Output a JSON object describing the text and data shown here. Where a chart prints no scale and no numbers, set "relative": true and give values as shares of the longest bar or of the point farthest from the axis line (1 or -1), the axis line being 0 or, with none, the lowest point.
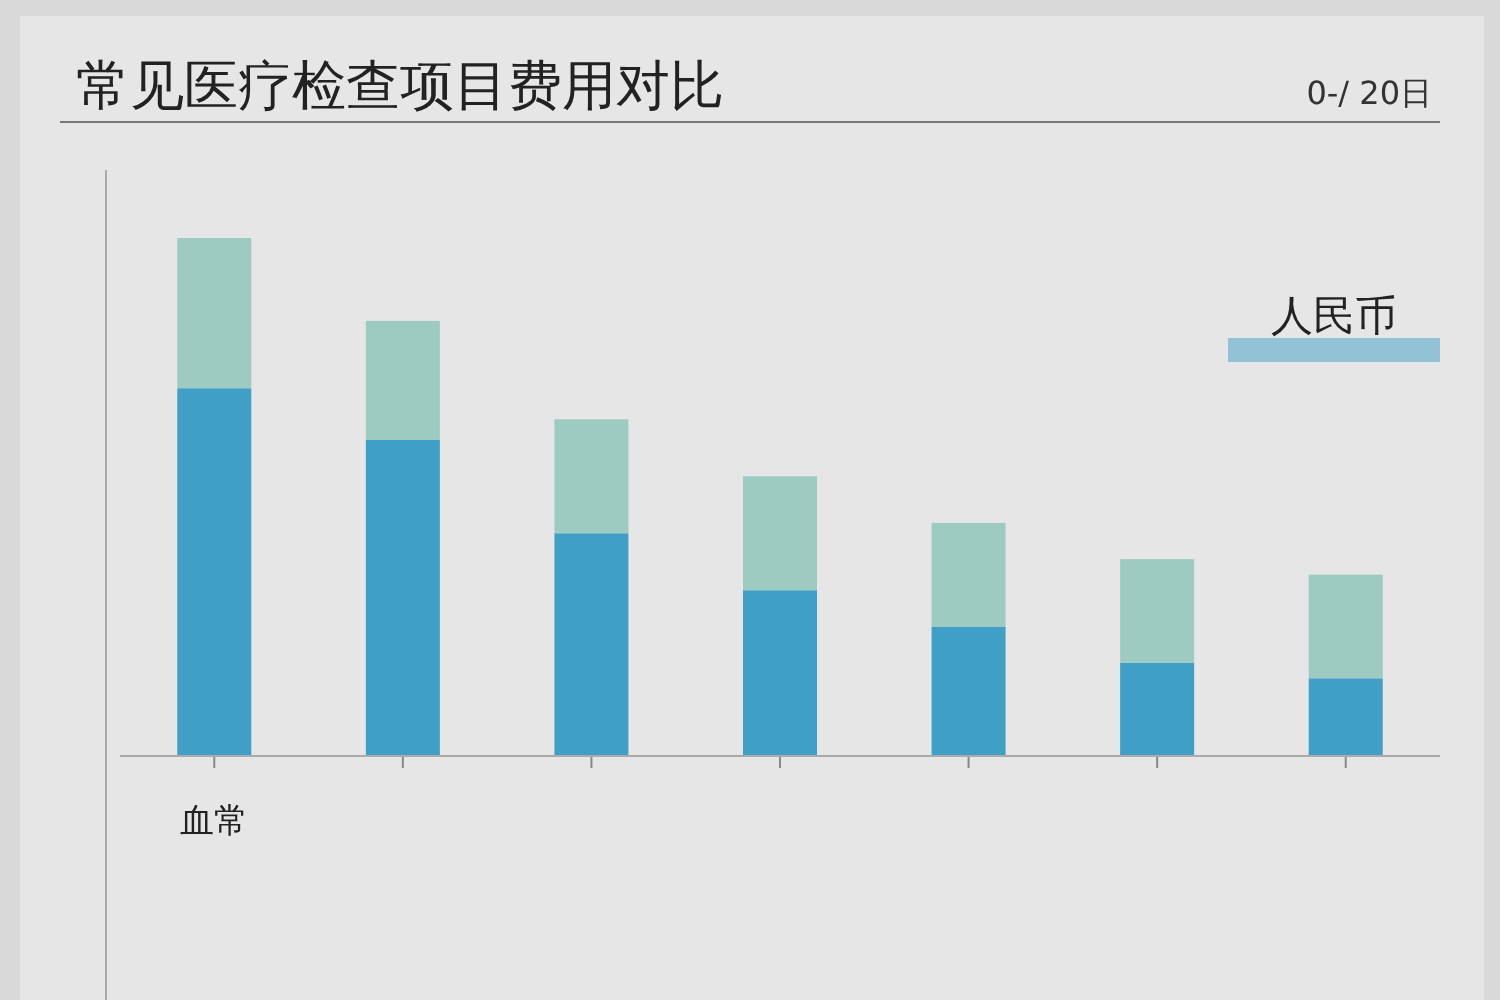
{
  "chart_data": {
    "type": "bar",
    "title": "常见医疗检查项目费用对比",
    "subtitle": "0-/ 20日",
    "relative": true,
    "stacked": true,
    "legend": "top right",
    "categories": [
      "血常",
      null,
      null,
      null,
      null,
      null,
      null
    ],
    "series": [
      {
        "name": "人民币",
        "color": "#3f9fc6",
        "values": [
          0.71,
          0.61,
          0.43,
          0.32,
          0.25,
          0.18,
          0.15
        ]
      },
      {
        "color": "#9dcbc1",
        "values": [
          0.29,
          0.23,
          0.22,
          0.22,
          0.2,
          0.2,
          0.2
        ]
      }
    ]
  }
}
